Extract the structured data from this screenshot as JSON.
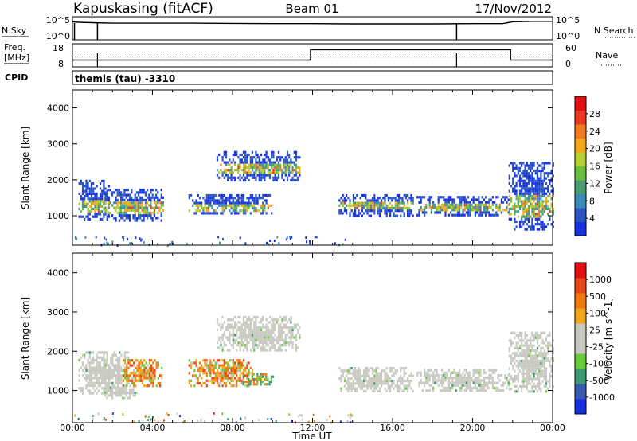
{
  "header": {
    "station": "Kapuskasing (fitACF)",
    "beam": "Beam 01",
    "date": "17/Nov/2012"
  },
  "chart_data": [
    {
      "type": "line",
      "panel": "noise",
      "left_label": "N.Sky",
      "left_ticks": [
        "10^5",
        "10^0"
      ],
      "right_label": "N.Search",
      "right_ticks": [
        "10^5",
        "10^0"
      ],
      "x_hours": [
        0,
        0.3,
        1,
        2,
        4,
        6,
        8,
        10,
        12,
        14,
        16,
        18,
        20,
        21.5,
        22,
        23,
        24
      ],
      "sky_level": [
        0.78,
        0.76,
        0.74,
        0.72,
        0.72,
        0.72,
        0.71,
        0.7,
        0.7,
        0.69,
        0.69,
        0.69,
        0.7,
        0.7,
        0.78,
        0.8,
        0.8
      ],
      "spike_hours": [
        0.1,
        1.25,
        19.2
      ]
    },
    {
      "type": "line",
      "panel": "frequency",
      "left_label_lines": [
        "Freq.",
        "[MHz]"
      ],
      "left_ticks": [
        18,
        8
      ],
      "right_label": "Nave",
      "right_ticks": [
        60,
        0
      ],
      "freq_steps": [
        {
          "start": 0,
          "end": 11.9,
          "value": 10.5
        },
        {
          "start": 11.9,
          "end": 21.9,
          "value": 15.8
        },
        {
          "start": 21.9,
          "end": 24,
          "value": 10.5
        }
      ],
      "nave_level": 0.15,
      "spike_hours": [
        1.25,
        19.2
      ]
    },
    {
      "type": "text",
      "panel": "cpid",
      "label": "CPID",
      "program": "themis (tau) -3310"
    },
    {
      "type": "heatmap",
      "panel": "power",
      "ylabel": "Slant Range [km]",
      "ylim": [
        180,
        4500
      ],
      "yticks": [
        1000,
        2000,
        3000,
        4000
      ],
      "colorbar_label": "Power [dB]",
      "colorbar_ticks": [
        "28",
        "24",
        "20",
        "16",
        "12",
        "8",
        "4"
      ],
      "colors": [
        "#1832e0",
        "#2a56c0",
        "#3a8ab8",
        "#4c9a70",
        "#6abf40",
        "#b8d032",
        "#f0a818",
        "#f07a20",
        "#e83820",
        "#e01010"
      ],
      "regions": [
        {
          "t0": 0.3,
          "t1": 1.8,
          "r0": 900,
          "r1": 2000,
          "core": [
            1100,
            1450
          ]
        },
        {
          "t0": 1.6,
          "t1": 4.5,
          "r0": 850,
          "r1": 1750,
          "core": [
            1100,
            1400
          ]
        },
        {
          "t0": 5.8,
          "t1": 10.0,
          "r0": 1100,
          "r1": 1600,
          "core": [
            1150,
            1350
          ]
        },
        {
          "t0": 7.2,
          "t1": 11.4,
          "r0": 2000,
          "r1": 2800,
          "core": [
            2200,
            2500
          ]
        },
        {
          "t0": 13.3,
          "t1": 17.0,
          "r0": 1000,
          "r1": 1600,
          "core": [
            1200,
            1400
          ]
        },
        {
          "t0": 17.2,
          "t1": 21.8,
          "r0": 1000,
          "r1": 1550,
          "core": [
            1150,
            1350
          ]
        },
        {
          "t0": 21.8,
          "t1": 24.0,
          "r0": 650,
          "r1": 2500,
          "core": [
            950,
            1600
          ]
        }
      ]
    },
    {
      "type": "heatmap",
      "panel": "velocity",
      "ylabel": "Slant Range [km]",
      "ylim": [
        180,
        4500
      ],
      "yticks": [
        1000,
        2000,
        3000,
        4000
      ],
      "colorbar_label": "Velocity [m s^-1]",
      "colorbar_ticks": [
        "1000",
        "500",
        "100",
        "25",
        "-25",
        "-100",
        "-500",
        "-1000"
      ],
      "colors": [
        "#1830e0",
        "#3a58b0",
        "#3a9a70",
        "#6acb38",
        "#c8c8c0",
        "#c8c8c0",
        "#f0a818",
        "#f07a10",
        "#e84818",
        "#e01010"
      ],
      "regions": [
        {
          "t0": 0.3,
          "t1": 2.8,
          "r0": 900,
          "r1": 2000,
          "tone": "gray"
        },
        {
          "t0": 2.5,
          "t1": 4.5,
          "r0": 1100,
          "r1": 1800,
          "tone": "orange"
        },
        {
          "t0": 1.6,
          "t1": 3.2,
          "r0": 800,
          "r1": 1100,
          "tone": "gray"
        },
        {
          "t0": 5.8,
          "t1": 9.0,
          "r0": 1150,
          "r1": 1800,
          "tone": "orange"
        },
        {
          "t0": 8.5,
          "t1": 10.0,
          "r0": 1150,
          "r1": 1450,
          "tone": "green"
        },
        {
          "t0": 7.2,
          "t1": 11.4,
          "r0": 2000,
          "r1": 2900,
          "tone": "gray"
        },
        {
          "t0": 13.3,
          "t1": 17.0,
          "r0": 1000,
          "r1": 1600,
          "tone": "gray"
        },
        {
          "t0": 17.2,
          "t1": 21.8,
          "r0": 1000,
          "r1": 1550,
          "tone": "gray"
        },
        {
          "t0": 21.8,
          "t1": 24.0,
          "r0": 950,
          "r1": 2500,
          "tone": "gray"
        }
      ]
    }
  ],
  "xaxis": {
    "label": "Time UT",
    "ticks": [
      "00:00",
      "04:00",
      "08:00",
      "12:00",
      "16:00",
      "20:00",
      "00:00"
    ],
    "xlim": [
      0,
      24
    ]
  }
}
